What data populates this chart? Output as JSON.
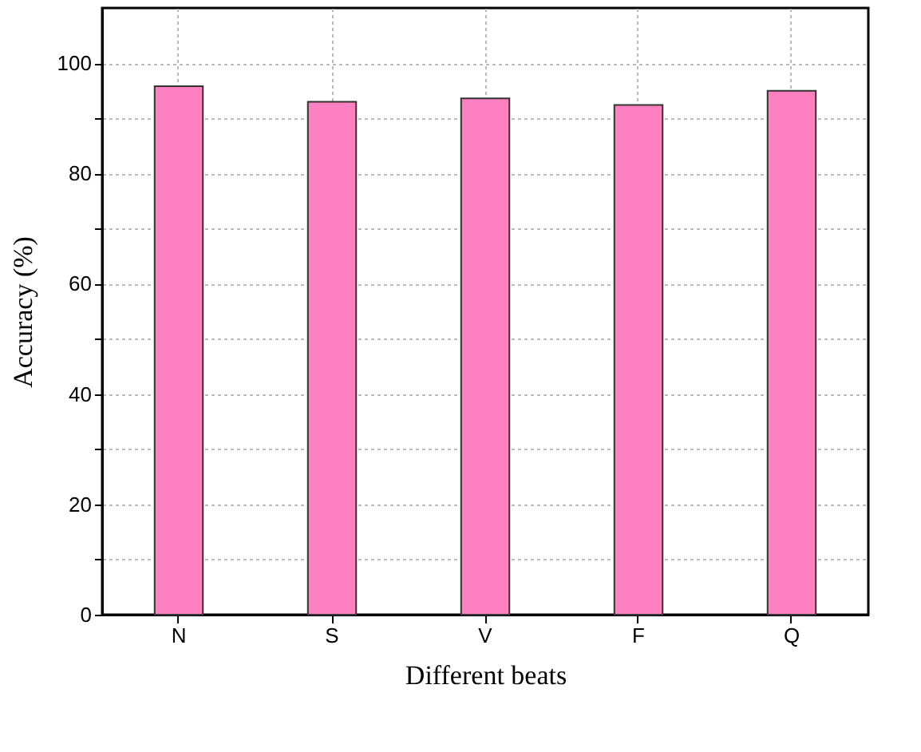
{
  "chart_data": {
    "type": "bar",
    "xlabel": "Different beats",
    "ylabel": "Accuracy (%)",
    "categories": [
      "N",
      "S",
      "V",
      "F",
      "Q"
    ],
    "values": [
      95.8,
      93.0,
      93.6,
      92.4,
      95.0
    ],
    "color": "#ff80c0",
    "ylim": [
      0,
      110
    ],
    "yticks": [
      0,
      {
        "value": 10,
        "label": null
      },
      20,
      {
        "value": 30,
        "label": null
      },
      40,
      {
        "value": 50,
        "label": null
      },
      60,
      {
        "value": 70,
        "label": null
      },
      80,
      {
        "value": 90,
        "label": null
      },
      100
    ],
    "grid": true
  }
}
